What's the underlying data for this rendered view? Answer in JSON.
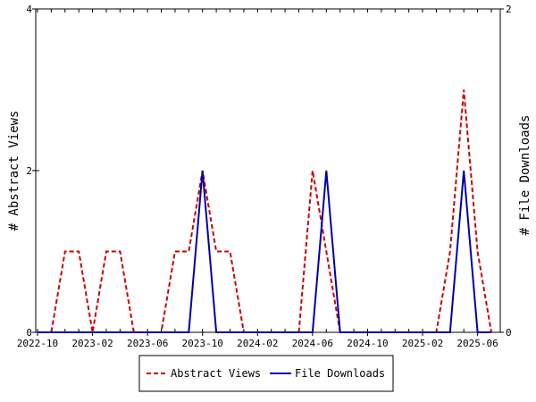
{
  "chart_data": {
    "type": "line",
    "x_ticks": [
      "2022-10",
      "2023-02",
      "2023-06",
      "2023-10",
      "2024-02",
      "2024-06",
      "2024-10",
      "2025-02",
      "2025-06"
    ],
    "x": [
      "2022-10",
      "2022-11",
      "2022-12",
      "2023-01",
      "2023-02",
      "2023-03",
      "2023-04",
      "2023-05",
      "2023-06",
      "2023-07",
      "2023-08",
      "2023-09",
      "2023-10",
      "2023-11",
      "2023-12",
      "2024-01",
      "2024-02",
      "2024-03",
      "2024-04",
      "2024-05",
      "2024-06",
      "2024-07",
      "2024-08",
      "2024-09",
      "2024-10",
      "2024-11",
      "2024-12",
      "2025-01",
      "2025-02",
      "2025-03",
      "2025-04",
      "2025-05",
      "2025-06",
      "2025-07"
    ],
    "series": [
      {
        "name": "Abstract Views",
        "axis": "left",
        "color": "#cc0000",
        "style": "dashed",
        "values": [
          0,
          0,
          1,
          1,
          0,
          1,
          1,
          0,
          0,
          0,
          1,
          1,
          2,
          1,
          1,
          0,
          0,
          0,
          0,
          0,
          2,
          1,
          0,
          0,
          0,
          0,
          0,
          0,
          0,
          0,
          1,
          3,
          1,
          0
        ]
      },
      {
        "name": "File Downloads",
        "axis": "right",
        "color": "#0000aa",
        "style": "solid",
        "values": [
          0,
          0,
          0,
          0,
          0,
          0,
          0,
          0,
          0,
          0,
          0,
          0,
          1,
          0,
          0,
          0,
          0,
          0,
          0,
          0,
          0,
          1,
          0,
          0,
          0,
          0,
          0,
          0,
          0,
          0,
          0,
          1,
          0,
          0
        ]
      }
    ],
    "y_left": {
      "label": "# Abstract Views",
      "ylim": [
        0,
        4
      ],
      "ticks": [
        "0",
        "2",
        "4"
      ]
    },
    "y_right": {
      "label": "# File Downloads",
      "ylim": [
        0,
        2
      ],
      "ticks": [
        "0",
        "2"
      ]
    },
    "legend_position": "bottom-center"
  }
}
